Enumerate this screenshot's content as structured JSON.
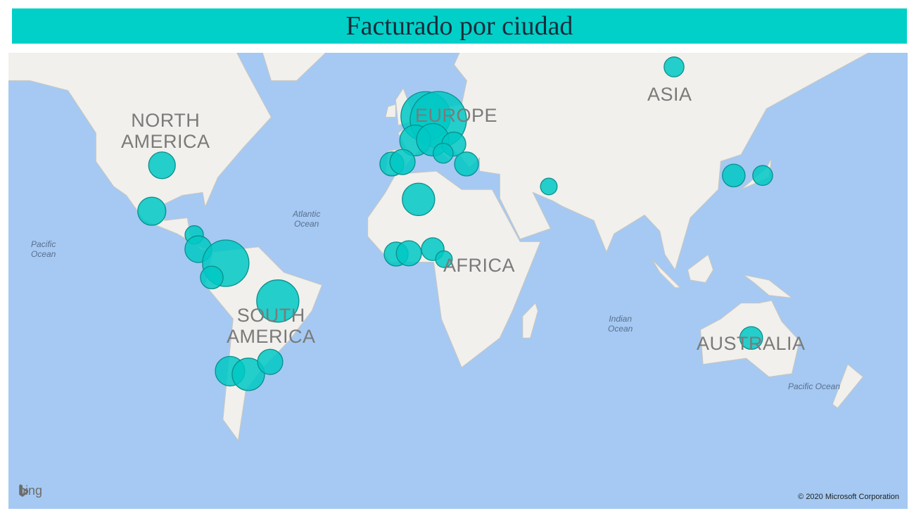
{
  "title": "Facturado por ciudad",
  "map": {
    "provider": "bing",
    "copyright": "© 2020 Microsoft Corporation",
    "continent_labels": [
      "NORTH\nAMERICA",
      "SOUTH\nAMERICA",
      "EUROPE",
      "AFRICA",
      "ASIA",
      "AUSTRALIA"
    ],
    "ocean_labels": [
      "Pacific\nOcean",
      "Atlantic\nOcean",
      "Indian\nOcean",
      "Pacific Ocean"
    ],
    "colors": {
      "ocean": "#A5C9F2",
      "land": "#F1F0EC",
      "bubble_fill": "#00C8C4",
      "bubble_stroke": "#0A8F8C",
      "title_bar": "#00D0C8"
    },
    "bubbles": [
      {
        "lon": 103.6,
        "lat": 62.6,
        "relative_size": 2.0
      },
      {
        "lon": -98,
        "lat": 38.8,
        "relative_size": 3.6
      },
      {
        "lon": -102,
        "lat": 23.4,
        "relative_size": 4.0
      },
      {
        "lon": -85.3,
        "lat": 14.6,
        "relative_size": 1.7
      },
      {
        "lon": -83.7,
        "lat": 9.1,
        "relative_size": 3.6
      },
      {
        "lon": -72.9,
        "lat": 3.6,
        "relative_size": 10.9
      },
      {
        "lon": -78.4,
        "lat": -2,
        "relative_size": 2.6
      },
      {
        "lon": -52.4,
        "lat": -11.2,
        "relative_size": 9.0
      },
      {
        "lon": -71.2,
        "lat": -36.2,
        "relative_size": 4.4
      },
      {
        "lon": -64,
        "lat": -37.2,
        "relative_size": 5.3
      },
      {
        "lon": -55.4,
        "lat": -33.2,
        "relative_size": 3.2
      },
      {
        "lon": 5.8,
        "lat": 52.2,
        "relative_size": 12.3
      },
      {
        "lon": 10.8,
        "lat": 51.4,
        "relative_size": 16.0
      },
      {
        "lon": 1.7,
        "lat": 46,
        "relative_size": 4.8
      },
      {
        "lon": 8.6,
        "lat": 46.2,
        "relative_size": 5.3
      },
      {
        "lon": 16.9,
        "lat": 45,
        "relative_size": 2.9
      },
      {
        "lon": 12.7,
        "lat": 42.4,
        "relative_size": 2.0
      },
      {
        "lon": 21.9,
        "lat": 39.2,
        "relative_size": 2.9
      },
      {
        "lon": -7.5,
        "lat": 39.2,
        "relative_size": 2.9
      },
      {
        "lon": -3.3,
        "lat": 39.8,
        "relative_size": 3.2
      },
      {
        "lon": 3,
        "lat": 27.6,
        "relative_size": 5.3
      },
      {
        "lon": -5.8,
        "lat": 7.2,
        "relative_size": 2.9
      },
      {
        "lon": -0.8,
        "lat": 7.5,
        "relative_size": 3.2
      },
      {
        "lon": 8.6,
        "lat": 9.1,
        "relative_size": 2.6
      },
      {
        "lon": 13,
        "lat": 5.2,
        "relative_size": 1.4
      },
      {
        "lon": 54.3,
        "lat": 32,
        "relative_size": 1.4
      },
      {
        "lon": 127.1,
        "lat": 35.6,
        "relative_size": 2.6
      },
      {
        "lon": 138.5,
        "lat": 35.6,
        "relative_size": 2.0
      },
      {
        "lon": 134,
        "lat": -25,
        "relative_size": 2.6
      }
    ]
  }
}
